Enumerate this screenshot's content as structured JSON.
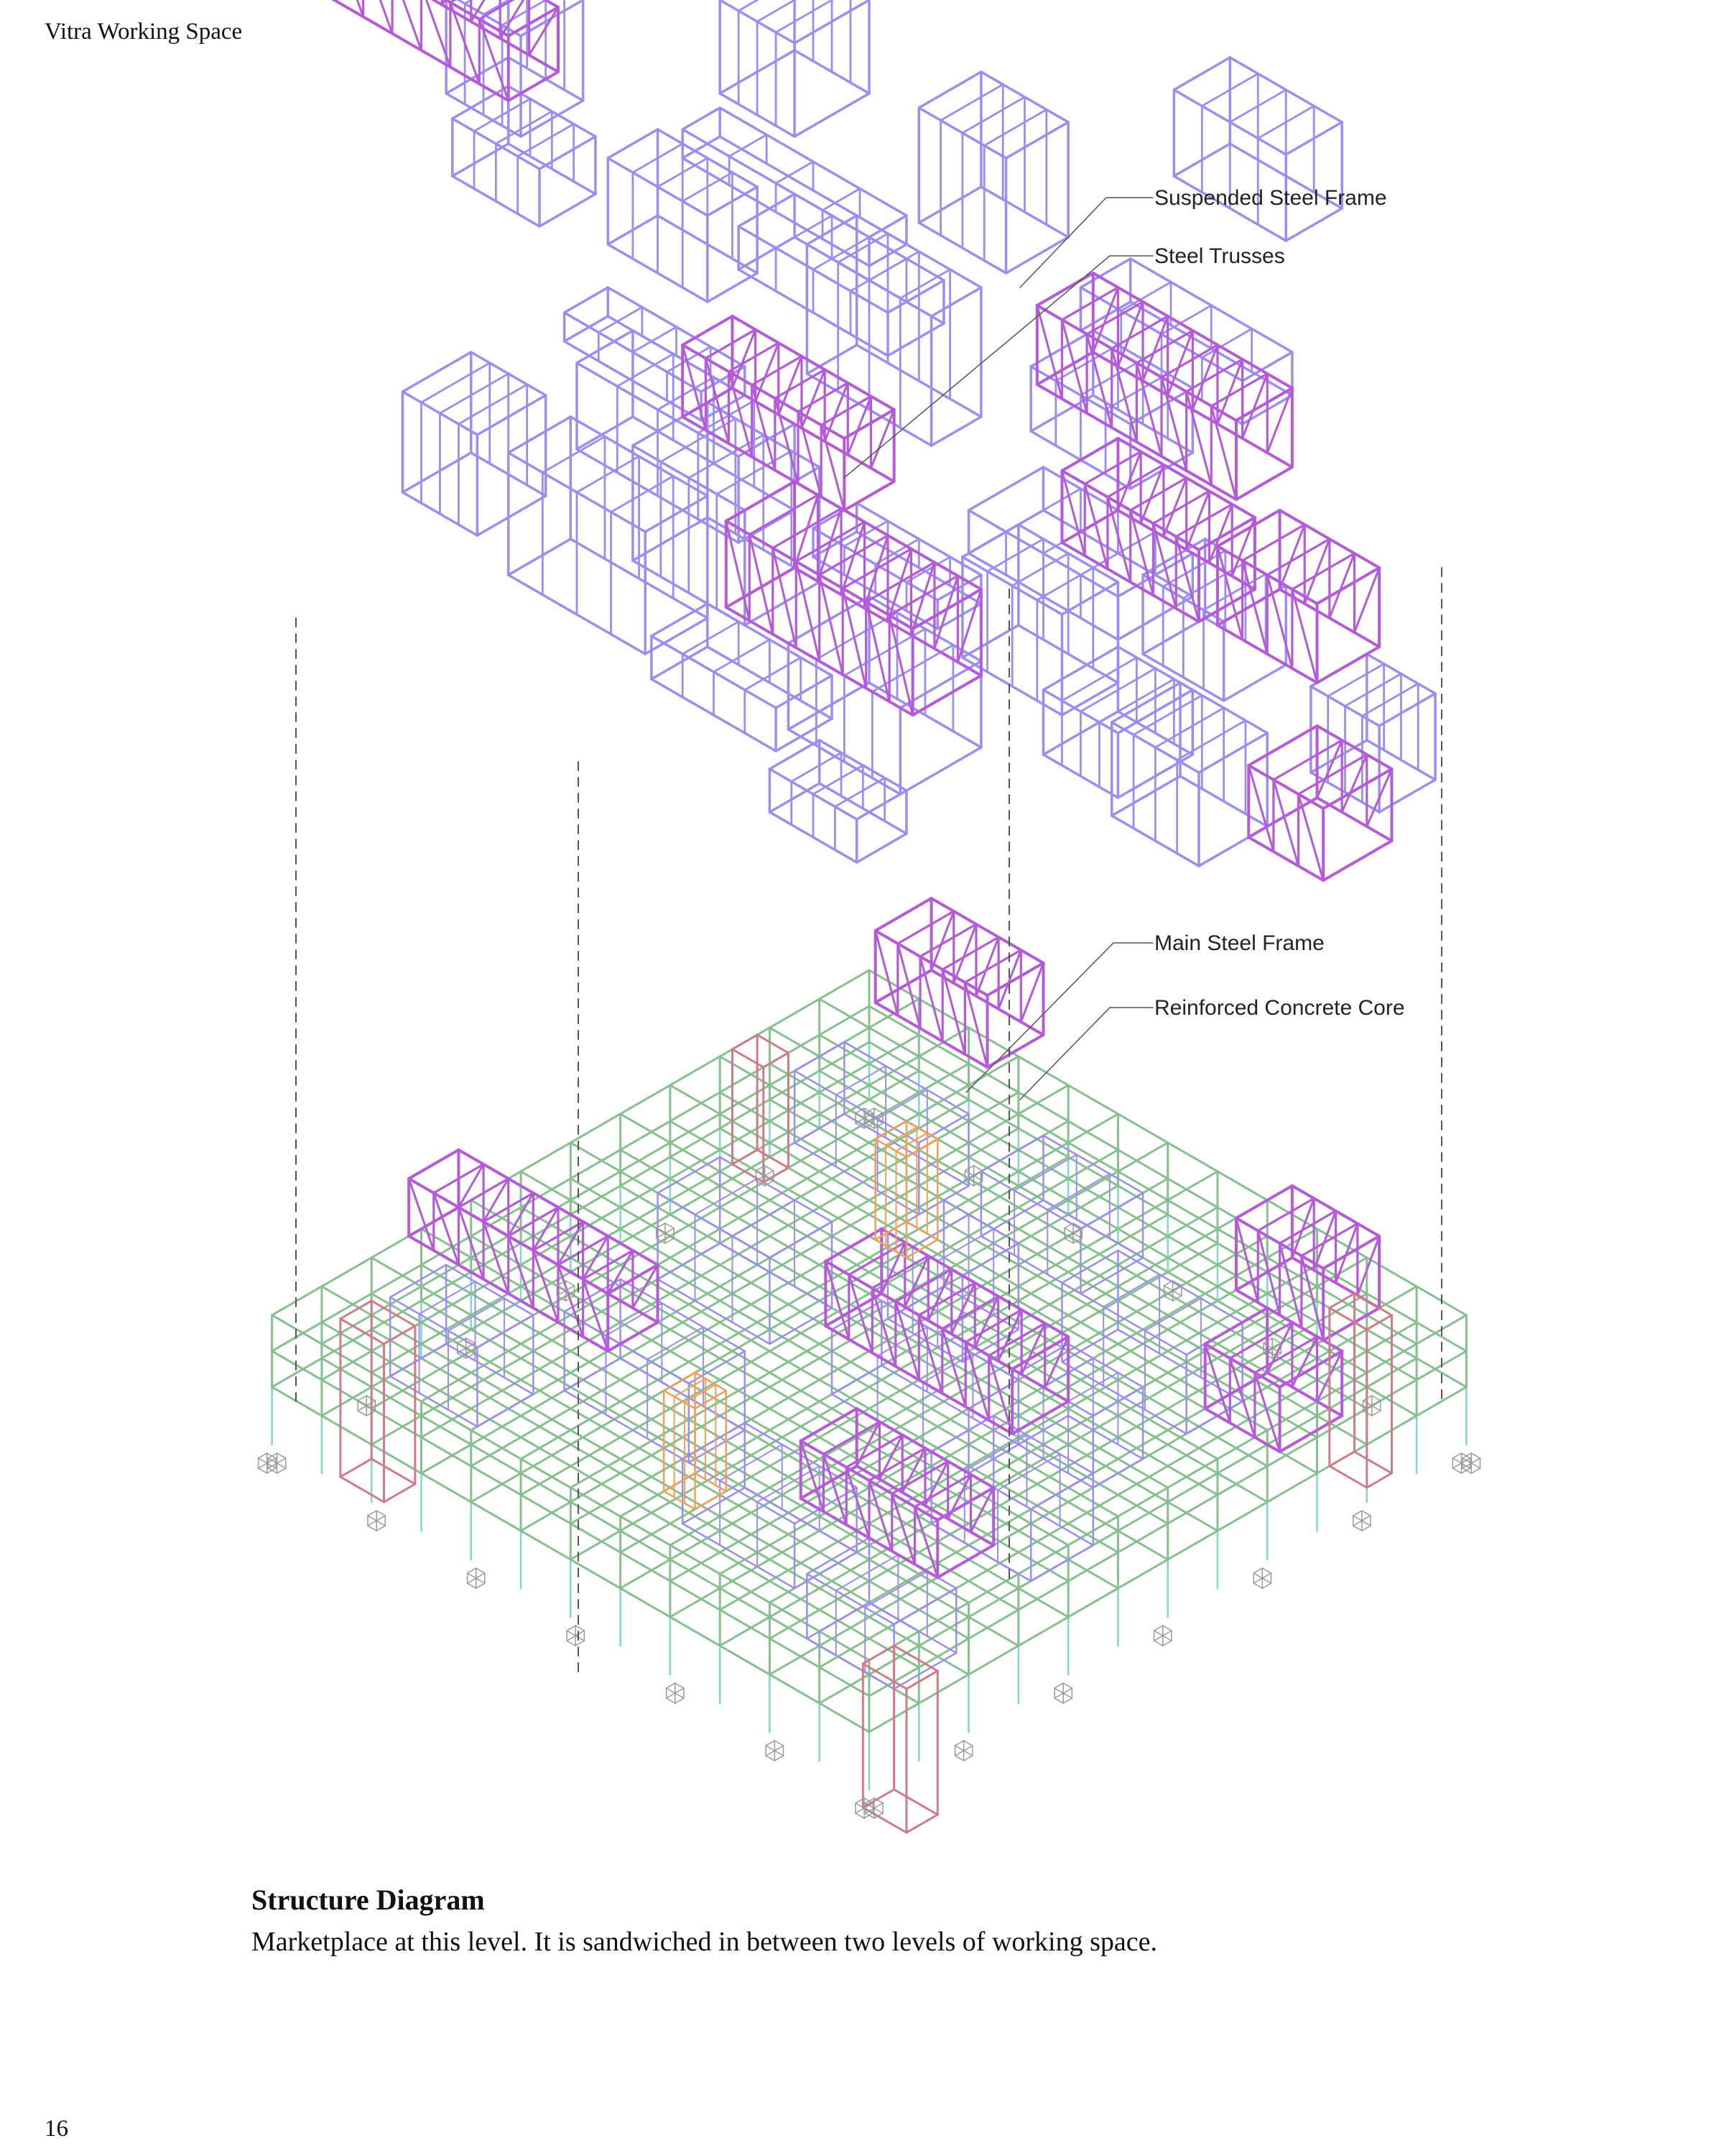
{
  "header": {
    "running_title": "Vitra Working Space"
  },
  "diagram": {
    "callouts": [
      {
        "id": "suspended",
        "label": "Suspended Steel Frame"
      },
      {
        "id": "trusses",
        "label": "Steel Trusses"
      },
      {
        "id": "main",
        "label": "Main Steel Frame"
      },
      {
        "id": "core",
        "label": "Reinforced Concrete Core"
      }
    ],
    "colors": {
      "suspended_frame": "#9b8ef0",
      "steel_trusses": "#b55ad8",
      "main_frame": "#86c08e",
      "concrete_core": "#d07a8a",
      "secondary": "#7fd8c8",
      "stair_core": "#f0a05a",
      "guide_line": "#555555"
    }
  },
  "caption": {
    "title": "Structure Diagram",
    "text": "Marketplace at this level. It is sandwiched in between two levels of working space."
  },
  "footer": {
    "page_number": "16"
  }
}
